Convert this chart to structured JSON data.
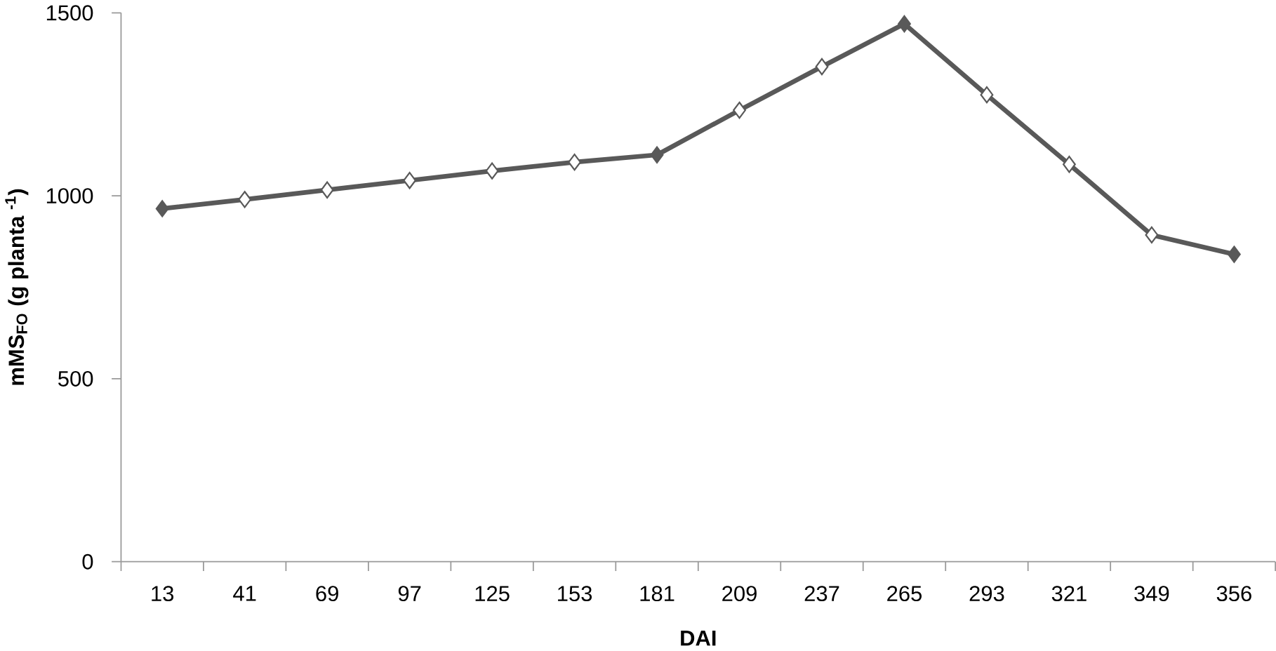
{
  "chart_data": {
    "type": "line",
    "xlabel": "DAI",
    "ylabel": "**mMS$_{FO}$ (g planta $^{-1}$)**",
    "categories": [
      "13",
      "41",
      "69",
      "97",
      "125",
      "153",
      "181",
      "209",
      "237",
      "265",
      "293",
      "321",
      "349",
      "356"
    ],
    "series": [
      {
        "color": "#595959",
        "values": [
          965,
          990,
          1016,
          1042,
          1068,
          1092,
          1112,
          1234,
          1353,
          1470,
          1276,
          1086,
          893,
          840
        ],
        "colors": [
          "#595959",
          "#ffffff",
          "#ffffff",
          "#ffffff",
          "#ffffff",
          "#ffffff",
          "#595959",
          "#ffffff",
          "#ffffff",
          "#595959",
          "#ffffff",
          "#ffffff",
          "#ffffff",
          "#595959"
        ]
      }
    ],
    "ylim": [
      0,
      1500
    ],
    "yticks": [
      0,
      500,
      1000,
      1500
    ],
    "marker": "diamond",
    "line_style": "solid"
  }
}
